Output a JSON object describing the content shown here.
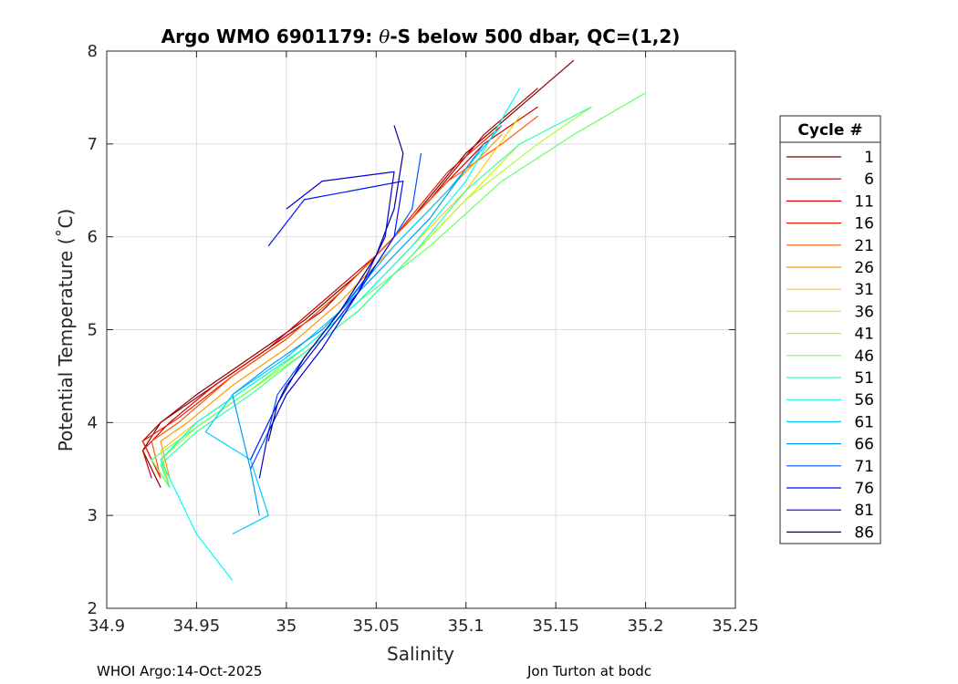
{
  "chart_data": {
    "type": "line",
    "title_prefix": "Argo WMO 6901179: ",
    "title_theta": "θ",
    "title_suffix": "-S below 500 dbar,  QC=(1,2)",
    "xlabel": "Salinity",
    "ylabel": "Potential Temperature (˚C)",
    "xlim": [
      34.9,
      35.25
    ],
    "ylim": [
      2,
      8
    ],
    "xticks": [
      34.9,
      34.95,
      35.0,
      35.05,
      35.1,
      35.15,
      35.2,
      35.25
    ],
    "xtick_labels": [
      "34.9",
      "34.95",
      "35",
      "35.05",
      "35.1",
      "35.15",
      "35.2",
      "35.25"
    ],
    "yticks": [
      2,
      3,
      4,
      5,
      6,
      7,
      8
    ],
    "ytick_labels": [
      "2",
      "3",
      "4",
      "5",
      "6",
      "7",
      "8"
    ],
    "grid": true,
    "legend": {
      "title": "Cycle #",
      "placement": "right",
      "entries": [
        {
          "label": "1",
          "color": "#800000"
        },
        {
          "label": "6",
          "color": "#a60000"
        },
        {
          "label": "11",
          "color": "#d40000"
        },
        {
          "label": "16",
          "color": "#f01a00"
        },
        {
          "label": "21",
          "color": "#ff5500"
        },
        {
          "label": "26",
          "color": "#ff9900"
        },
        {
          "label": "31",
          "color": "#ffcc00"
        },
        {
          "label": "36",
          "color": "#ddf000"
        },
        {
          "label": "41",
          "color": "#a6ff30"
        },
        {
          "label": "46",
          "color": "#66ff66"
        },
        {
          "label": "51",
          "color": "#33ffaa"
        },
        {
          "label": "56",
          "color": "#00ffee"
        },
        {
          "label": "61",
          "color": "#00ccff"
        },
        {
          "label": "66",
          "color": "#0099ff"
        },
        {
          "label": "71",
          "color": "#0055ff"
        },
        {
          "label": "76",
          "color": "#0011ff"
        },
        {
          "label": "81",
          "color": "#0000d0"
        },
        {
          "label": "86",
          "color": "#00008f"
        }
      ]
    },
    "series": [
      {
        "name": "1",
        "color": "#800000",
        "s": [
          34.93,
          34.92,
          34.93,
          34.95,
          34.98,
          35.01,
          35.04,
          35.07,
          35.1,
          35.13,
          35.16
        ],
        "t": [
          3.3,
          3.7,
          4.0,
          4.3,
          4.7,
          5.1,
          5.6,
          6.2,
          6.9,
          7.4,
          7.9
        ]
      },
      {
        "name": "6",
        "color": "#a60000",
        "s": [
          34.93,
          34.92,
          34.93,
          34.96,
          34.99,
          35.02,
          35.05,
          35.08,
          35.11,
          35.14
        ],
        "t": [
          3.4,
          3.8,
          4.0,
          4.4,
          4.8,
          5.2,
          5.8,
          6.4,
          7.1,
          7.6
        ]
      },
      {
        "name": "11",
        "color": "#d40000",
        "s": [
          34.925,
          34.92,
          34.935,
          34.96,
          34.99,
          35.02,
          35.05,
          35.08,
          35.11,
          35.14
        ],
        "t": [
          3.4,
          3.7,
          4.0,
          4.4,
          4.8,
          5.3,
          5.8,
          6.4,
          7.0,
          7.4
        ]
      },
      {
        "name": "16",
        "color": "#f01a00",
        "s": [
          34.93,
          34.92,
          34.94,
          34.97,
          35.0,
          35.03,
          35.06,
          35.09,
          35.12
        ],
        "t": [
          3.4,
          3.8,
          4.05,
          4.5,
          4.9,
          5.4,
          6.0,
          6.7,
          7.2
        ]
      },
      {
        "name": "21",
        "color": "#ff5500",
        "s": [
          34.93,
          34.925,
          34.94,
          34.97,
          35.0,
          35.03,
          35.06,
          35.09,
          35.12,
          35.14
        ],
        "t": [
          3.4,
          3.8,
          4.0,
          4.5,
          4.9,
          5.4,
          6.0,
          6.6,
          7.0,
          7.3
        ]
      },
      {
        "name": "26",
        "color": "#ff9900",
        "s": [
          34.935,
          34.93,
          34.945,
          34.97,
          35.0,
          35.03,
          35.06,
          35.09,
          35.12
        ],
        "t": [
          3.4,
          3.8,
          4.0,
          4.4,
          4.8,
          5.3,
          5.9,
          6.5,
          7.1
        ]
      },
      {
        "name": "31",
        "color": "#ffcc00",
        "s": [
          34.935,
          34.93,
          34.95,
          34.98,
          35.01,
          35.04,
          35.07,
          35.1,
          35.13
        ],
        "t": [
          3.3,
          3.7,
          4.0,
          4.4,
          4.8,
          5.3,
          5.9,
          6.5,
          7.3
        ]
      },
      {
        "name": "36",
        "color": "#ddf000",
        "s": [
          34.935,
          34.93,
          34.95,
          34.98,
          35.01,
          35.04,
          35.07,
          35.1,
          35.13
        ],
        "t": [
          3.3,
          3.6,
          3.95,
          4.35,
          4.75,
          5.2,
          5.8,
          6.4,
          7.0
        ]
      },
      {
        "name": "41",
        "color": "#a6ff30",
        "s": [
          34.935,
          34.93,
          34.95,
          34.98,
          35.01,
          35.04,
          35.07,
          35.1,
          35.14,
          35.17
        ],
        "t": [
          3.3,
          3.6,
          3.95,
          4.35,
          4.75,
          5.2,
          5.8,
          6.4,
          7.0,
          7.4
        ]
      },
      {
        "name": "46",
        "color": "#66ff66",
        "s": [
          34.935,
          34.925,
          34.95,
          34.98,
          35.01,
          35.04,
          35.08,
          35.12,
          35.16,
          35.2
        ],
        "t": [
          3.3,
          3.6,
          3.95,
          4.35,
          4.8,
          5.3,
          5.9,
          6.6,
          7.1,
          7.55
        ]
      },
      {
        "name": "51",
        "color": "#33ffaa",
        "s": [
          34.935,
          34.93,
          34.95,
          34.98,
          35.01,
          35.04,
          35.07,
          35.1,
          35.13,
          35.17
        ],
        "t": [
          3.3,
          3.55,
          3.9,
          4.3,
          4.75,
          5.2,
          5.8,
          6.5,
          7.0,
          7.4
        ]
      },
      {
        "name": "56",
        "color": "#00ffee",
        "s": [
          34.97,
          34.95,
          34.93,
          34.95,
          34.98,
          35.01,
          35.04,
          35.07,
          35.1,
          35.13
        ],
        "t": [
          2.3,
          2.8,
          3.6,
          4.0,
          4.4,
          4.8,
          5.3,
          5.9,
          6.6,
          7.6
        ]
      },
      {
        "name": "61",
        "color": "#00ccff",
        "s": [
          34.97,
          34.99,
          34.98,
          34.955,
          34.97,
          35.0,
          35.03,
          35.06,
          35.09,
          35.12
        ],
        "t": [
          2.8,
          3.0,
          3.6,
          3.9,
          4.3,
          4.7,
          5.2,
          5.9,
          6.5,
          7.2
        ]
      },
      {
        "name": "66",
        "color": "#0099ff",
        "s": [
          34.985,
          34.98,
          34.975,
          34.97,
          34.99,
          35.02,
          35.05,
          35.08,
          35.11
        ],
        "t": [
          3.0,
          3.5,
          3.9,
          4.3,
          4.6,
          5.0,
          5.6,
          6.2,
          7.0
        ]
      },
      {
        "name": "71",
        "color": "#0055ff",
        "s": [
          34.98,
          34.99,
          34.995,
          35.01,
          35.03,
          35.05,
          35.07,
          35.075
        ],
        "t": [
          3.5,
          3.9,
          4.3,
          4.7,
          5.2,
          5.7,
          6.3,
          6.9
        ]
      },
      {
        "name": "76",
        "color": "#0011ff",
        "s": [
          34.98,
          34.99,
          35.0,
          35.02,
          35.04,
          35.06,
          35.065,
          35.01,
          34.99
        ],
        "t": [
          3.6,
          4.0,
          4.4,
          4.9,
          5.4,
          6.0,
          6.6,
          6.4,
          5.9
        ]
      },
      {
        "name": "81",
        "color": "#0000d0",
        "s": [
          34.985,
          34.99,
          35.0,
          35.02,
          35.04,
          35.055,
          35.06,
          35.02,
          35.0
        ],
        "t": [
          3.4,
          3.9,
          4.3,
          4.8,
          5.4,
          6.0,
          6.7,
          6.6,
          6.3
        ]
      },
      {
        "name": "86",
        "color": "#00008f",
        "s": [
          34.99,
          34.995,
          35.01,
          35.03,
          35.05,
          35.06,
          35.065,
          35.06
        ],
        "t": [
          3.8,
          4.2,
          4.7,
          5.2,
          5.8,
          6.3,
          6.9,
          7.2
        ]
      }
    ]
  },
  "footer": {
    "left": "WHOI Argo:14-Oct-2025",
    "right": "Jon Turton at bodc"
  }
}
